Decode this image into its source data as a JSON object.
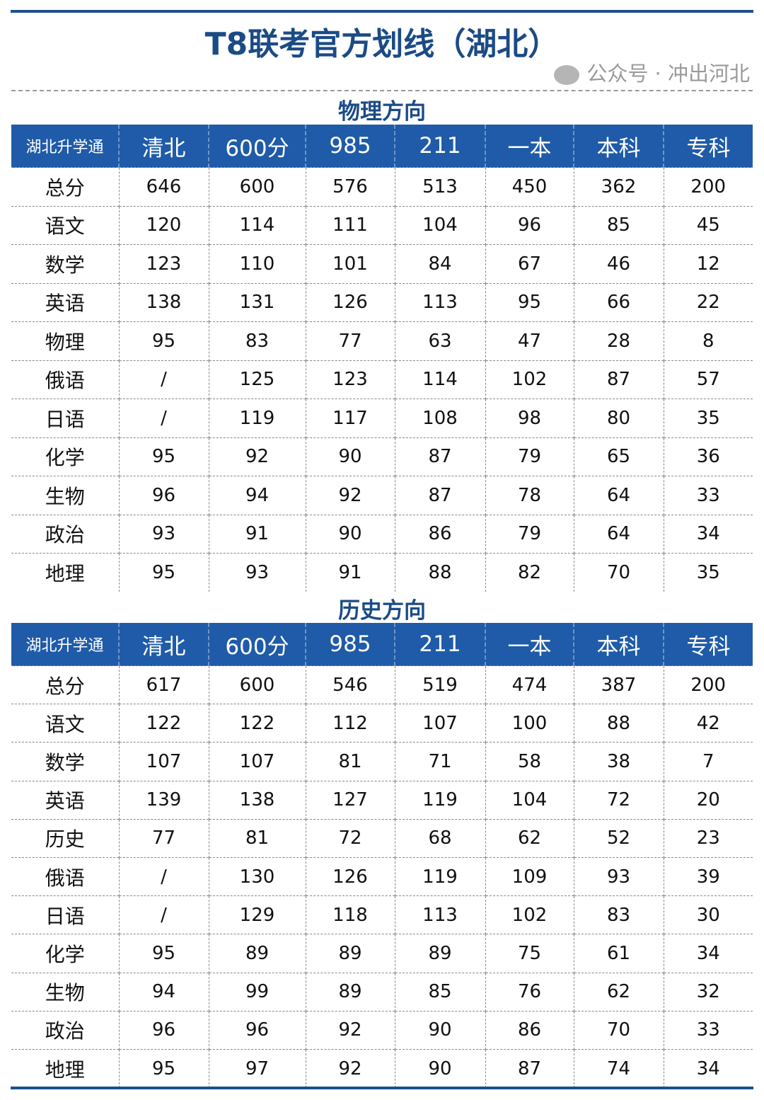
{
  "title": "T8联考官方划线（湖北）",
  "columns": [
    "湖北升学通",
    "清北",
    "600分",
    "985",
    "211",
    "一本",
    "本科",
    "专科"
  ],
  "sections": [
    {
      "name": "物理方向",
      "rows": [
        [
          "总分",
          "646",
          "600",
          "576",
          "513",
          "450",
          "362",
          "200"
        ],
        [
          "语文",
          "120",
          "114",
          "111",
          "104",
          "96",
          "85",
          "45"
        ],
        [
          "数学",
          "123",
          "110",
          "101",
          "84",
          "67",
          "46",
          "12"
        ],
        [
          "英语",
          "138",
          "131",
          "126",
          "113",
          "95",
          "66",
          "22"
        ],
        [
          "物理",
          "95",
          "83",
          "77",
          "63",
          "47",
          "28",
          "8"
        ],
        [
          "俄语",
          "/",
          "125",
          "123",
          "114",
          "102",
          "87",
          "57"
        ],
        [
          "日语",
          "/",
          "119",
          "117",
          "108",
          "98",
          "80",
          "35"
        ],
        [
          "化学",
          "95",
          "92",
          "90",
          "87",
          "79",
          "65",
          "36"
        ],
        [
          "生物",
          "96",
          "94",
          "92",
          "87",
          "78",
          "64",
          "33"
        ],
        [
          "政治",
          "93",
          "91",
          "90",
          "86",
          "79",
          "64",
          "34"
        ],
        [
          "地理",
          "95",
          "93",
          "91",
          "88",
          "82",
          "70",
          "35"
        ]
      ]
    },
    {
      "name": "历史方向",
      "rows": [
        [
          "总分",
          "617",
          "600",
          "546",
          "519",
          "474",
          "387",
          "200"
        ],
        [
          "语文",
          "122",
          "122",
          "112",
          "107",
          "100",
          "88",
          "42"
        ],
        [
          "数学",
          "107",
          "107",
          "81",
          "71",
          "58",
          "38",
          "7"
        ],
        [
          "英语",
          "139",
          "138",
          "127",
          "119",
          "104",
          "72",
          "20"
        ],
        [
          "历史",
          "77",
          "81",
          "72",
          "68",
          "62",
          "52",
          "23"
        ],
        [
          "俄语",
          "/",
          "130",
          "126",
          "119",
          "109",
          "93",
          "39"
        ],
        [
          "日语",
          "/",
          "129",
          "118",
          "113",
          "102",
          "83",
          "30"
        ],
        [
          "化学",
          "95",
          "89",
          "89",
          "89",
          "75",
          "61",
          "34"
        ],
        [
          "生物",
          "94",
          "99",
          "89",
          "85",
          "76",
          "62",
          "32"
        ],
        [
          "政治",
          "96",
          "96",
          "92",
          "90",
          "86",
          "70",
          "33"
        ],
        [
          "地理",
          "95",
          "97",
          "92",
          "90",
          "87",
          "74",
          "34"
        ]
      ]
    }
  ],
  "watermark": "公众号 · 冲出河北",
  "colors": {
    "header": "#1f5ba8",
    "title": "#1b4b86"
  }
}
